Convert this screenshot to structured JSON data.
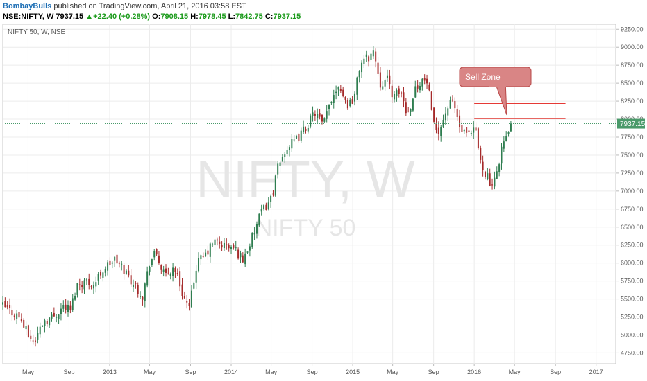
{
  "header": {
    "author": "BombayBulls",
    "published": "published on TradingView.com, April 21, 2016 03:58 EST",
    "symbol": "NSE:NIFTY, W",
    "last": "7937.15",
    "change_arrow": "▲",
    "change": "+22.40 (+0.28%)",
    "o_label": "O:",
    "o_value": "7908.15",
    "h_label": "H:",
    "h_value": "7978.45",
    "l_label": "L:",
    "l_value": "7842.75",
    "c_label": "C:",
    "c_value": "7937.15"
  },
  "chart_title": "NIFTY 50, W, NSE",
  "watermark": {
    "line1": "NIFTY, W",
    "line2": "NIFTY 50"
  },
  "annotation": {
    "text": "Sell Zone"
  },
  "price_tag": "7937.15",
  "colors": {
    "up": "#2e7d4f",
    "down": "#a52a2a",
    "zone": "#e53935",
    "callout": "#d98585",
    "tag": "#4a9a6a"
  },
  "chart_data": {
    "type": "candlestick",
    "timeframe": "W",
    "y_ticks": [
      4750,
      5000,
      5250,
      5500,
      5750,
      6000,
      6250,
      6500,
      6750,
      7000,
      7250,
      7500,
      7750,
      8000,
      8250,
      8500,
      8750,
      9000,
      9250
    ],
    "ylim": [
      4600,
      9320
    ],
    "x_ticks": [
      {
        "label": "May",
        "date": "2012-05-01"
      },
      {
        "label": "Sep",
        "date": "2012-09-01"
      },
      {
        "label": "2013",
        "date": "2013-01-01"
      },
      {
        "label": "May",
        "date": "2013-05-01"
      },
      {
        "label": "Sep",
        "date": "2013-09-01"
      },
      {
        "label": "2014",
        "date": "2014-01-01"
      },
      {
        "label": "May",
        "date": "2014-05-01"
      },
      {
        "label": "Sep",
        "date": "2014-09-01"
      },
      {
        "label": "2015",
        "date": "2015-01-01"
      },
      {
        "label": "May",
        "date": "2015-05-01"
      },
      {
        "label": "Sep",
        "date": "2015-09-01"
      },
      {
        "label": "2016",
        "date": "2016-01-01"
      },
      {
        "label": "May",
        "date": "2016-05-01"
      },
      {
        "label": "Sep",
        "date": "2016-09-01"
      },
      {
        "label": "2017",
        "date": "2017-01-01"
      }
    ],
    "xlim": [
      "2012-02-15",
      "2017-03-01"
    ],
    "last_price": 7937.15,
    "zone_lines": [
      {
        "value": 8220,
        "start": "2016-01-01",
        "end": "2016-10-01"
      },
      {
        "value": 8010,
        "start": "2016-01-01",
        "end": "2016-10-01"
      }
    ],
    "trend": [
      {
        "date": "2012-02-15",
        "close": 5400
      },
      {
        "date": "2012-03-10",
        "close": 5330
      },
      {
        "date": "2012-04-05",
        "close": 5250
      },
      {
        "date": "2012-05-01",
        "close": 5000
      },
      {
        "date": "2012-05-20",
        "close": 4900
      },
      {
        "date": "2012-06-15",
        "close": 5200
      },
      {
        "date": "2012-07-15",
        "close": 5250
      },
      {
        "date": "2012-08-15",
        "close": 5400
      },
      {
        "date": "2012-09-05",
        "close": 5350
      },
      {
        "date": "2012-09-25",
        "close": 5700
      },
      {
        "date": "2012-10-20",
        "close": 5750
      },
      {
        "date": "2012-11-15",
        "close": 5700
      },
      {
        "date": "2012-12-10",
        "close": 5900
      },
      {
        "date": "2013-01-15",
        "close": 6050
      },
      {
        "date": "2013-02-15",
        "close": 5900
      },
      {
        "date": "2013-03-15",
        "close": 5700
      },
      {
        "date": "2013-04-10",
        "close": 5550
      },
      {
        "date": "2013-05-01",
        "close": 6000
      },
      {
        "date": "2013-05-20",
        "close": 6150
      },
      {
        "date": "2013-06-15",
        "close": 5800
      },
      {
        "date": "2013-07-15",
        "close": 5950
      },
      {
        "date": "2013-08-10",
        "close": 5550
      },
      {
        "date": "2013-08-28",
        "close": 5350
      },
      {
        "date": "2013-09-20",
        "close": 6000
      },
      {
        "date": "2013-10-15",
        "close": 6100
      },
      {
        "date": "2013-11-10",
        "close": 6300
      },
      {
        "date": "2013-12-05",
        "close": 6250
      },
      {
        "date": "2014-01-10",
        "close": 6200
      },
      {
        "date": "2014-02-05",
        "close": 6050
      },
      {
        "date": "2014-03-01",
        "close": 6300
      },
      {
        "date": "2014-04-01",
        "close": 6700
      },
      {
        "date": "2014-05-01",
        "close": 6900
      },
      {
        "date": "2014-05-20",
        "close": 7300
      },
      {
        "date": "2014-06-15",
        "close": 7600
      },
      {
        "date": "2014-07-15",
        "close": 7700
      },
      {
        "date": "2014-08-15",
        "close": 7900
      },
      {
        "date": "2014-09-10",
        "close": 8100
      },
      {
        "date": "2014-10-05",
        "close": 7900
      },
      {
        "date": "2014-10-25",
        "close": 8250
      },
      {
        "date": "2014-11-20",
        "close": 8500
      },
      {
        "date": "2014-12-15",
        "close": 8200
      },
      {
        "date": "2015-01-05",
        "close": 8300
      },
      {
        "date": "2015-01-25",
        "close": 8800
      },
      {
        "date": "2015-02-15",
        "close": 8850
      },
      {
        "date": "2015-03-05",
        "close": 8950
      },
      {
        "date": "2015-03-25",
        "close": 8500
      },
      {
        "date": "2015-04-15",
        "close": 8550
      },
      {
        "date": "2015-05-05",
        "close": 8300
      },
      {
        "date": "2015-05-25",
        "close": 8400
      },
      {
        "date": "2015-06-15",
        "close": 8050
      },
      {
        "date": "2015-07-05",
        "close": 8400
      },
      {
        "date": "2015-07-25",
        "close": 8550
      },
      {
        "date": "2015-08-15",
        "close": 8500
      },
      {
        "date": "2015-08-30",
        "close": 7900
      },
      {
        "date": "2015-09-20",
        "close": 7850
      },
      {
        "date": "2015-10-10",
        "close": 8150
      },
      {
        "date": "2015-10-30",
        "close": 8250
      },
      {
        "date": "2015-11-20",
        "close": 7850
      },
      {
        "date": "2015-12-15",
        "close": 7750
      },
      {
        "date": "2016-01-05",
        "close": 7850
      },
      {
        "date": "2016-01-20",
        "close": 7400
      },
      {
        "date": "2016-02-10",
        "close": 7200
      },
      {
        "date": "2016-02-25",
        "close": 7000
      },
      {
        "date": "2016-03-10",
        "close": 7300
      },
      {
        "date": "2016-03-25",
        "close": 7650
      },
      {
        "date": "2016-04-10",
        "close": 7750
      },
      {
        "date": "2016-04-20",
        "close": 7937
      }
    ]
  }
}
